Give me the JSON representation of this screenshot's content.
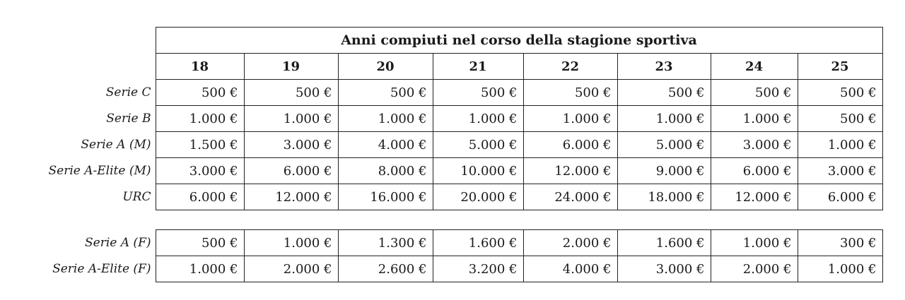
{
  "title": "Anni compiuti nel corso della stagione sportiva",
  "ages": [
    "18",
    "19",
    "20",
    "21",
    "22",
    "23",
    "24",
    "25"
  ],
  "table_main": [
    {
      "label": "Serie C",
      "values": [
        "500 €",
        "500 €",
        "500 €",
        "500 €",
        "500 €",
        "500 €",
        "500 €",
        "500 €"
      ]
    },
    {
      "label": "Serie B",
      "values": [
        "1.000 €",
        "1.000 €",
        "1.000 €",
        "1.000 €",
        "1.000 €",
        "1.000 €",
        "1.000 €",
        "500 €"
      ]
    },
    {
      "label": "Serie A (M)",
      "values": [
        "1.500 €",
        "3.000 €",
        "4.000 €",
        "5.000 €",
        "6.000 €",
        "5.000 €",
        "3.000 €",
        "1.000 €"
      ]
    },
    {
      "label": "Serie A-Elite (M)",
      "values": [
        "3.000 €",
        "6.000 €",
        "8.000 €",
        "10.000 €",
        "12.000 €",
        "9.000 €",
        "6.000 €",
        "3.000 €"
      ]
    },
    {
      "label": "URC",
      "values": [
        "6.000 €",
        "12.000 €",
        "16.000 €",
        "20.000 €",
        "24.000 €",
        "18.000 €",
        "12.000 €",
        "6.000 €"
      ]
    }
  ],
  "table_female": [
    {
      "label": "Serie A (F)",
      "values": [
        "500 €",
        "1.000 €",
        "1.300 €",
        "1.600 €",
        "2.000 €",
        "1.600 €",
        "1.000 €",
        "300 €"
      ]
    },
    {
      "label": "Serie A-Elite (F)",
      "values": [
        "1.000 €",
        "2.000 €",
        "2.600 €",
        "3.200 €",
        "4.000 €",
        "3.000 €",
        "2.000 €",
        "1.000 €"
      ]
    }
  ]
}
